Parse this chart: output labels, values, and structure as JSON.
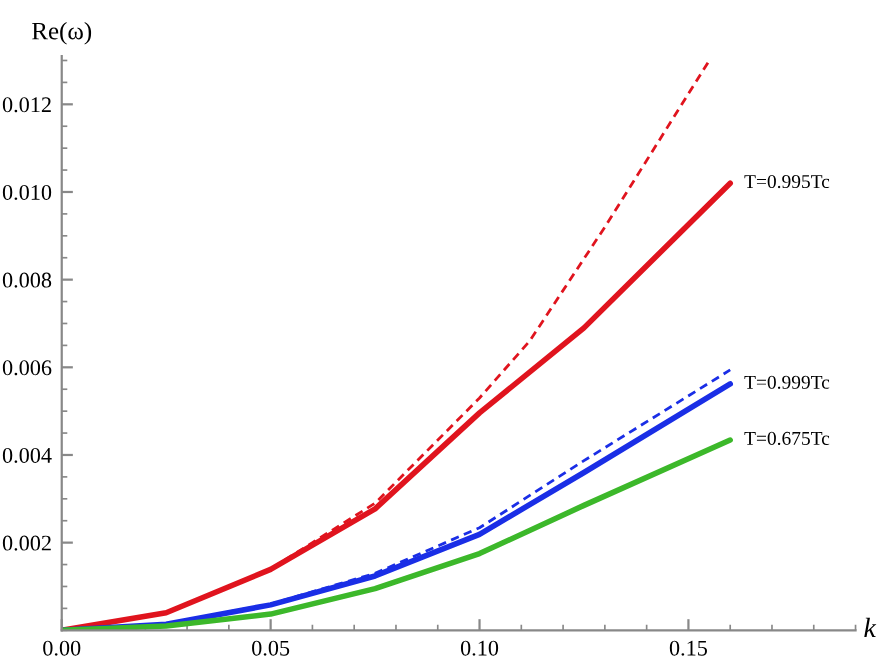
{
  "chart_data": {
    "type": "line",
    "xlabel": "k",
    "ylabel": "Re(ω)",
    "xlim": [
      0,
      0.19
    ],
    "ylim": [
      0,
      0.0131
    ],
    "xticks": [
      {
        "value": 0,
        "label": "0.00"
      },
      {
        "value": 0.05,
        "label": "0.05"
      },
      {
        "value": 0.1,
        "label": "0.10"
      },
      {
        "value": 0.15,
        "label": "0.15"
      }
    ],
    "yticks": [
      0.002,
      0.004,
      0.006,
      0.008,
      {
        "value": 0.01,
        "label": "0.010"
      },
      0.012
    ],
    "grid": false,
    "legend": false,
    "marker": "none",
    "series": [
      {
        "name": "T=0.995Tc",
        "color": "#e0141e",
        "line_style": "solid",
        "x": [
          0,
          0.025,
          0.05,
          0.075,
          0.1,
          0.125,
          0.16
        ],
        "values": [
          0,
          0.0004,
          0.00139,
          0.00277,
          0.00496,
          0.0069,
          0.0102
        ]
      },
      {
        "color": "#e0141e",
        "line_style": "dashed",
        "x": [
          0,
          0.025,
          0.05,
          0.075,
          0.1,
          0.112,
          0.13,
          0.155
        ],
        "values": [
          0,
          0.0004,
          0.0014,
          0.0029,
          0.0053,
          0.0066,
          0.0092,
          0.013
        ]
      },
      {
        "name": "T=0.999Tc",
        "color": "#1a2ee6",
        "line_style": "solid",
        "x": [
          0,
          0.025,
          0.05,
          0.075,
          0.1,
          0.125,
          0.16
        ],
        "values": [
          0,
          0.00014,
          0.00058,
          0.00124,
          0.00219,
          0.0036,
          0.00562
        ]
      },
      {
        "color": "#1a2ee6",
        "line_style": "dashed",
        "x": [
          0,
          0.025,
          0.05,
          0.075,
          0.1,
          0.125,
          0.16
        ],
        "values": [
          0,
          0.00015,
          0.0006,
          0.0013,
          0.00234,
          0.00387,
          0.00594
        ]
      },
      {
        "name": "T=0.675Tc",
        "color": "#3cb82a",
        "line_style": "solid",
        "x": [
          0,
          0.025,
          0.05,
          0.075,
          0.1,
          0.125,
          0.16
        ],
        "values": [
          0,
          0.0001,
          0.00037,
          0.00095,
          0.00175,
          0.00285,
          0.00434
        ]
      }
    ]
  }
}
